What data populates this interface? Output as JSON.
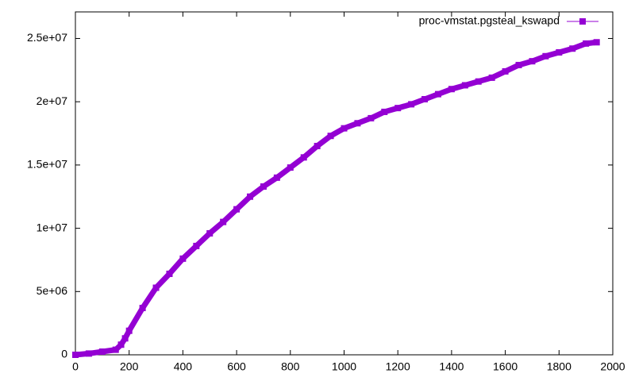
{
  "chart_data": {
    "type": "line",
    "legend": "top-right",
    "xlim": [
      0,
      2000
    ],
    "xticks": [
      0,
      200,
      400,
      600,
      800,
      1000,
      1200,
      1400,
      1600,
      1800,
      2000
    ],
    "ylim": [
      0,
      27100000
    ],
    "yticks": [
      0,
      {
        "value": 5000000,
        "label": "5e+06"
      },
      {
        "value": 10000000,
        "label": "1e+07"
      },
      {
        "value": 15000000,
        "label": "1.5e+07"
      },
      {
        "value": 20000000,
        "label": "2e+07"
      },
      {
        "value": 25000000,
        "label": "2.5e+07"
      }
    ],
    "series": [
      {
        "name": "proc-vmstat.pgsteal_kswapd",
        "color": "#9400d3",
        "x": [
          0,
          50,
          100,
          150,
          170,
          185,
          200,
          250,
          300,
          350,
          400,
          450,
          500,
          550,
          600,
          650,
          700,
          750,
          800,
          850,
          900,
          950,
          1000,
          1050,
          1100,
          1150,
          1200,
          1250,
          1300,
          1350,
          1400,
          1450,
          1500,
          1550,
          1600,
          1650,
          1700,
          1750,
          1800,
          1850,
          1900,
          1940
        ],
        "values": [
          0,
          100000,
          250000,
          400000,
          800000,
          1300000,
          1900000,
          3700000,
          5300000,
          6400000,
          7600000,
          8600000,
          9600000,
          10500000,
          11500000,
          12500000,
          13300000,
          14000000,
          14800000,
          15600000,
          16500000,
          17300000,
          17900000,
          18300000,
          18700000,
          19200000,
          19500000,
          19800000,
          20200000,
          20600000,
          21000000,
          21300000,
          21600000,
          21900000,
          22400000,
          22900000,
          23200000,
          23600000,
          23900000,
          24200000,
          24600000,
          24700000
        ]
      }
    ]
  }
}
